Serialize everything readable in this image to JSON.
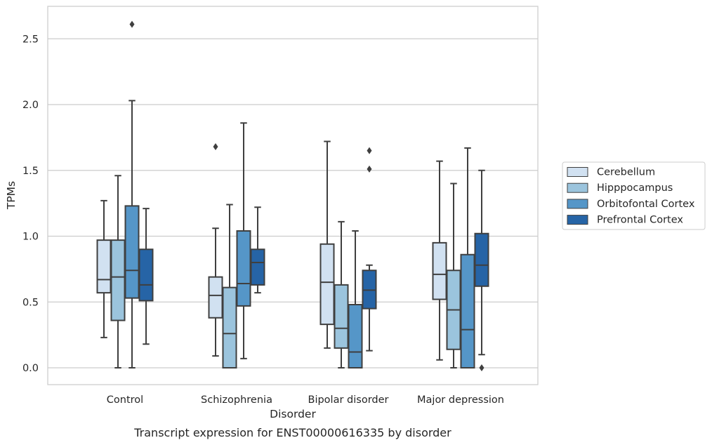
{
  "chart_data": {
    "type": "box",
    "caption": "Transcript expression for ENST00000616335 by disorder",
    "xlabel": "Disorder",
    "ylabel": "TPMs",
    "ylim": [
      -0.13,
      2.75
    ],
    "yticks": [
      "0.0",
      "0.5",
      "1.0",
      "1.5",
      "2.0",
      "2.5"
    ],
    "grid": "horizontal",
    "legend_position": "right",
    "categories": [
      "Control",
      "Schizophrenia",
      "Bipolar disorder",
      "Major depression"
    ],
    "series": [
      {
        "name": "Cerebellum",
        "color": "#d1e1f1",
        "boxes": [
          {
            "whisker_low": 0.23,
            "q1": 0.57,
            "median": 0.67,
            "q3": 0.97,
            "whisker_high": 1.27,
            "outliers": []
          },
          {
            "whisker_low": 0.09,
            "q1": 0.38,
            "median": 0.55,
            "q3": 0.69,
            "whisker_high": 1.06,
            "outliers": [
              1.68
            ]
          },
          {
            "whisker_low": 0.15,
            "q1": 0.33,
            "median": 0.65,
            "q3": 0.94,
            "whisker_high": 1.72,
            "outliers": []
          },
          {
            "whisker_low": 0.06,
            "q1": 0.52,
            "median": 0.71,
            "q3": 0.95,
            "whisker_high": 1.57,
            "outliers": []
          }
        ]
      },
      {
        "name": "Hipppocampus",
        "color": "#9bc4dd",
        "boxes": [
          {
            "whisker_low": 0.0,
            "q1": 0.36,
            "median": 0.69,
            "q3": 0.97,
            "whisker_high": 1.46,
            "outliers": []
          },
          {
            "whisker_low": 0.0,
            "q1": 0.0,
            "median": 0.26,
            "q3": 0.61,
            "whisker_high": 1.24,
            "outliers": []
          },
          {
            "whisker_low": 0.0,
            "q1": 0.15,
            "median": 0.3,
            "q3": 0.63,
            "whisker_high": 1.11,
            "outliers": []
          },
          {
            "whisker_low": 0.0,
            "q1": 0.14,
            "median": 0.44,
            "q3": 0.74,
            "whisker_high": 1.4,
            "outliers": []
          }
        ]
      },
      {
        "name": "Orbitofontal Cortex",
        "color": "#5596c8",
        "boxes": [
          {
            "whisker_low": 0.0,
            "q1": 0.53,
            "median": 0.74,
            "q3": 1.23,
            "whisker_high": 2.03,
            "outliers": [
              2.61
            ]
          },
          {
            "whisker_low": 0.07,
            "q1": 0.47,
            "median": 0.64,
            "q3": 1.04,
            "whisker_high": 1.86,
            "outliers": []
          },
          {
            "whisker_low": 0.0,
            "q1": 0.0,
            "median": 0.12,
            "q3": 0.48,
            "whisker_high": 1.04,
            "outliers": []
          },
          {
            "whisker_low": 0.0,
            "q1": 0.0,
            "median": 0.29,
            "q3": 0.86,
            "whisker_high": 1.67,
            "outliers": []
          }
        ]
      },
      {
        "name": "Prefrontal Cortex",
        "color": "#2664a6",
        "boxes": [
          {
            "whisker_low": 0.18,
            "q1": 0.51,
            "median": 0.63,
            "q3": 0.9,
            "whisker_high": 1.21,
            "outliers": []
          },
          {
            "whisker_low": 0.57,
            "q1": 0.63,
            "median": 0.8,
            "q3": 0.9,
            "whisker_high": 1.22,
            "outliers": []
          },
          {
            "whisker_low": 0.13,
            "q1": 0.45,
            "median": 0.59,
            "q3": 0.74,
            "whisker_high": 0.78,
            "outliers": [
              1.51,
              1.65
            ]
          },
          {
            "whisker_low": 0.1,
            "q1": 0.62,
            "median": 0.78,
            "q3": 1.02,
            "whisker_high": 1.5,
            "outliers": [
              0.0
            ]
          }
        ]
      }
    ]
  }
}
